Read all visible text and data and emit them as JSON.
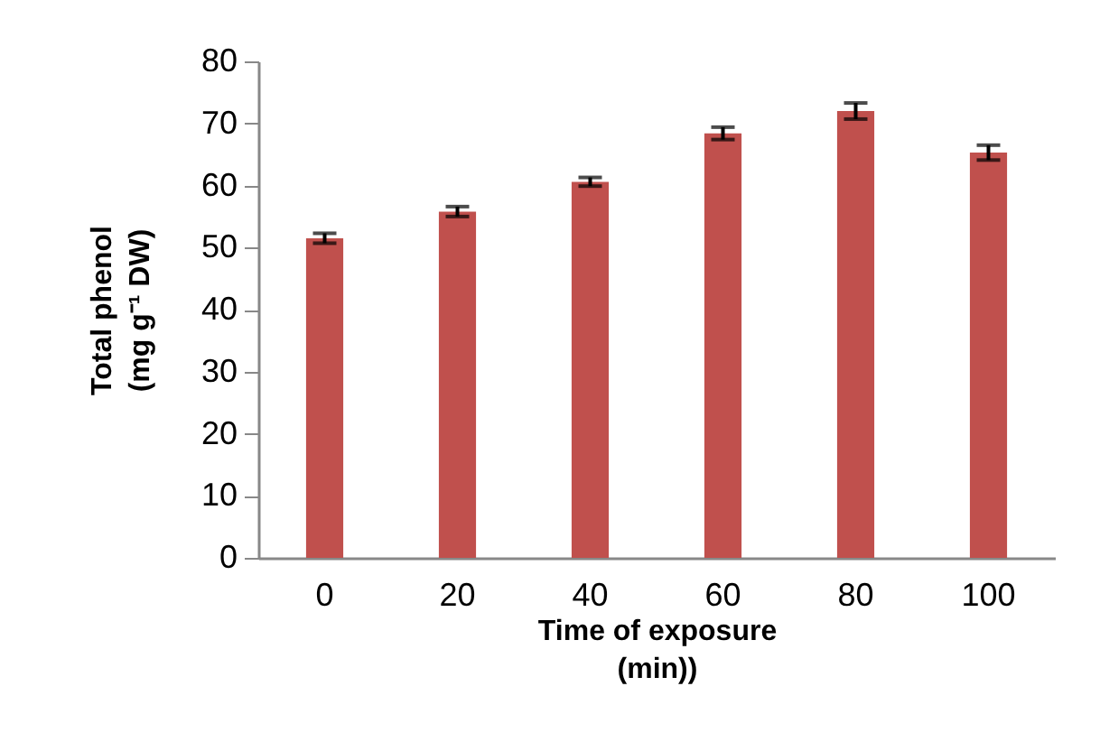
{
  "chart_data": {
    "type": "bar",
    "xlabel": "Time of exposure\n(min))",
    "ylabel": "Total phenol\n(mg g⁻¹ DW)",
    "categories": [
      "0",
      "20",
      "40",
      "60",
      "80",
      "100"
    ],
    "values": [
      51.5,
      55.8,
      60.6,
      68.4,
      72.0,
      65.3
    ],
    "errors": [
      0.8,
      0.8,
      0.7,
      1.0,
      1.3,
      1.2
    ],
    "color": "#c0504d",
    "ylim": [
      0,
      80
    ],
    "yticks": [
      0,
      10,
      20,
      30,
      40,
      50,
      60,
      70,
      80
    ],
    "grid": false
  }
}
